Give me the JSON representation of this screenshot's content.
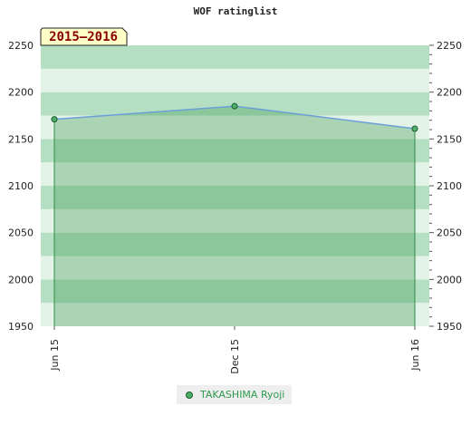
{
  "colors": {
    "series": "#6c9fd8",
    "area": "#3f9c52",
    "point": "#4caf6a",
    "badge_bg": "#ffffc8",
    "band_dark": "#b5dfc2",
    "band_light": "#e4f3e8"
  },
  "chart_data": {
    "type": "area",
    "title": "WOF ratinglist",
    "period_label": "2015–2016",
    "xlabel": "",
    "ylabel": "",
    "x": [
      "Jun 15",
      "Dec 15",
      "Jun 16"
    ],
    "series": [
      {
        "name": "TAKASHIMA Ryoji",
        "values": [
          2171,
          2185,
          2161
        ]
      }
    ],
    "ylim": [
      1950,
      2250
    ],
    "yticks": [
      1950,
      2000,
      2050,
      2100,
      2150,
      2200,
      2250
    ],
    "grid": true,
    "legend_position": "bottom"
  }
}
